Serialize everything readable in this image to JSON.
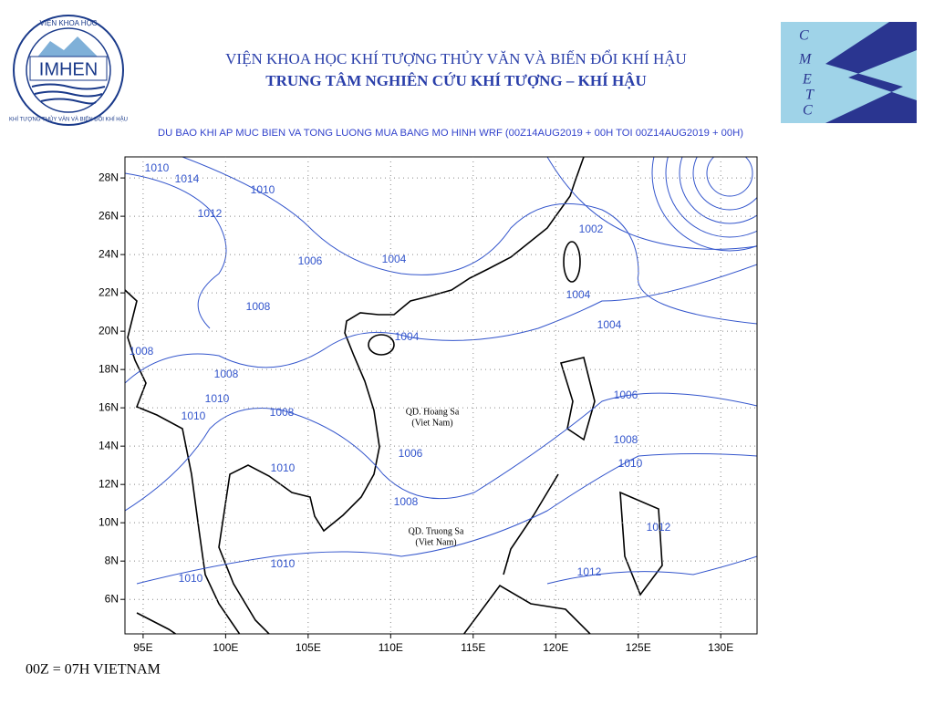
{
  "header": {
    "institute": "VIỆN KHOA HỌC KHÍ TƯỢNG THỦY VĂN VÀ BIẾN ĐỔI KHÍ HẬU",
    "center": "TRUNG TÂM NGHIÊN CỨU KHÍ TƯỢNG – KHÍ HẬU",
    "logo_left": {
      "name": "IMHEN",
      "ring_top": "VIỆN KHOA HỌC",
      "ring_bottom": "KHÍ TƯỢNG THỦY VĂN VÀ BIẾN ĐỔI KHÍ HẬU"
    },
    "logo_right": [
      "C",
      "M",
      "E",
      "T",
      "C"
    ]
  },
  "map": {
    "title": "DU BAO KHI AP MUC BIEN VA TONG LUONG MUA BANG MO HINH WRF (00Z14AUG2019 + 00H TOI 00Z14AUG2019 + 00H)",
    "xlim": [
      93.9,
      132.2
    ],
    "ylim": [
      4.2,
      29.1
    ],
    "xticks": [
      {
        "value": 95,
        "label": "95E"
      },
      {
        "value": 100,
        "label": "100E"
      },
      {
        "value": 105,
        "label": "105E"
      },
      {
        "value": 110,
        "label": "110E"
      },
      {
        "value": 115,
        "label": "115E"
      },
      {
        "value": 120,
        "label": "120E"
      },
      {
        "value": 125,
        "label": "125E"
      },
      {
        "value": 130,
        "label": "130E"
      }
    ],
    "yticks": [
      {
        "value": 6,
        "label": "6N"
      },
      {
        "value": 8,
        "label": "8N"
      },
      {
        "value": 10,
        "label": "10N"
      },
      {
        "value": 12,
        "label": "12N"
      },
      {
        "value": 14,
        "label": "14N"
      },
      {
        "value": 16,
        "label": "16N"
      },
      {
        "value": 18,
        "label": "18N"
      },
      {
        "value": 20,
        "label": "20N"
      },
      {
        "value": 22,
        "label": "22N"
      },
      {
        "value": 24,
        "label": "24N"
      },
      {
        "value": 26,
        "label": "26N"
      },
      {
        "value": 28,
        "label": "28N"
      }
    ],
    "grid": true,
    "isobar_labels": [
      1010,
      1014,
      1010,
      1012,
      1006,
      1004,
      1002,
      1004,
      1004,
      1008,
      1004,
      1008,
      1008,
      1010,
      1010,
      1008,
      1006,
      1006,
      1008,
      1010,
      1010,
      1008,
      1012,
      1010,
      1010,
      1012
    ],
    "places": [
      {
        "name": "QD. Hoang Sa",
        "note": "(Viet Nam)"
      },
      {
        "name": "QD. Truong Sa",
        "note": "(Viet Nam)"
      }
    ]
  },
  "footer": "00Z = 07H VIETNAM"
}
